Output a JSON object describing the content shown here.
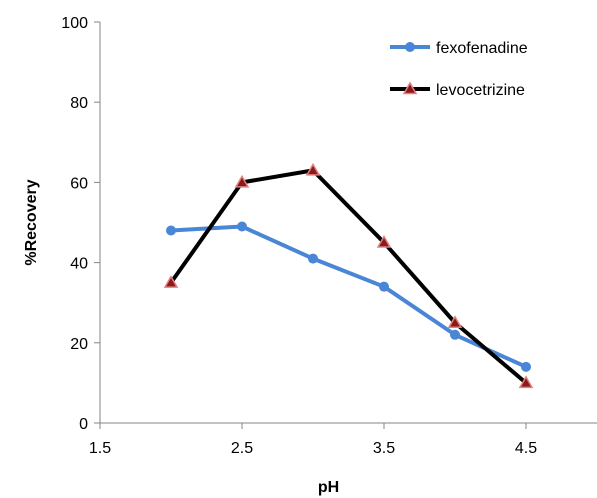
{
  "chart_data": {
    "type": "line",
    "title": "",
    "xlabel": "pH",
    "ylabel": "%Recovery",
    "xlim": [
      1.5,
      5.0
    ],
    "ylim": [
      0,
      100
    ],
    "x_ticks": [
      1.5,
      2.5,
      3.5,
      4.5
    ],
    "x_tick_labels": [
      "1.5",
      "2.5",
      "3.5",
      "4.5"
    ],
    "y_ticks": [
      0,
      20,
      40,
      60,
      80,
      100
    ],
    "y_tick_labels": [
      "0",
      "20",
      "40",
      "60",
      "80",
      "100"
    ],
    "grid": false,
    "legend_position": "top-right",
    "series": [
      {
        "name": "fexofenadine",
        "color": "#4a86d6",
        "marker": "circle",
        "x": [
          2.0,
          2.5,
          3.0,
          3.5,
          4.0,
          4.5
        ],
        "y": [
          48,
          49,
          41,
          34,
          22,
          14
        ]
      },
      {
        "name": "levocetrizine",
        "color": "#000000",
        "marker": "triangle",
        "marker_fill": "#8b1a1a",
        "marker_edge": "#e08080",
        "x": [
          2.0,
          2.5,
          3.0,
          3.5,
          4.0,
          4.5
        ],
        "y": [
          35,
          60,
          63,
          45,
          25,
          10
        ]
      }
    ]
  }
}
